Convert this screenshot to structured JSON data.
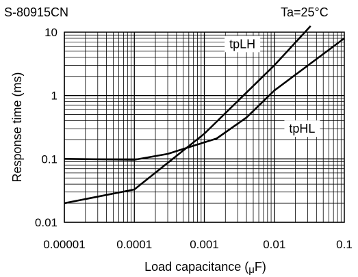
{
  "chart_data": {
    "type": "line",
    "title": "S-80915CN",
    "annotation": "Ta=25°C",
    "xlabel_main": "Load capacitance (",
    "xlabel_mu": "μ",
    "xlabel_unit": "F)",
    "ylabel": "Response time (ms)",
    "x_scale": "log",
    "y_scale": "log",
    "xlim": [
      1e-05,
      0.1
    ],
    "ylim": [
      0.01,
      10
    ],
    "grid": true,
    "x_ticks": [
      {
        "value": 1e-05,
        "label": "0.00001"
      },
      {
        "value": 0.0001,
        "label": "0.0001"
      },
      {
        "value": 0.001,
        "label": "0.001"
      },
      {
        "value": 0.01,
        "label": "0.01"
      },
      {
        "value": 0.1,
        "label": "0.1"
      }
    ],
    "y_ticks": [
      {
        "value": 0.01,
        "label": "0.01"
      },
      {
        "value": 0.1,
        "label": "0.1"
      },
      {
        "value": 1,
        "label": "1"
      },
      {
        "value": 10,
        "label": "10"
      }
    ],
    "series": [
      {
        "name": "tpLH",
        "x": [
          1e-05,
          0.0001,
          0.001,
          0.01,
          0.033
        ],
        "y": [
          0.02,
          0.033,
          0.25,
          3.0,
          12.5
        ]
      },
      {
        "name": "tpHL",
        "x": [
          1e-05,
          0.0001,
          0.0003,
          0.0015,
          0.004,
          0.01,
          0.1
        ],
        "y": [
          0.1,
          0.097,
          0.12,
          0.21,
          0.45,
          1.2,
          8.0
        ]
      }
    ],
    "series_labels": [
      {
        "series": "tpLH",
        "text": "tpLH",
        "at_x": 0.0035,
        "at_y": 6.5
      },
      {
        "series": "tpHL",
        "text": "tpHL",
        "at_x": 0.025,
        "at_y": 0.3
      }
    ]
  }
}
